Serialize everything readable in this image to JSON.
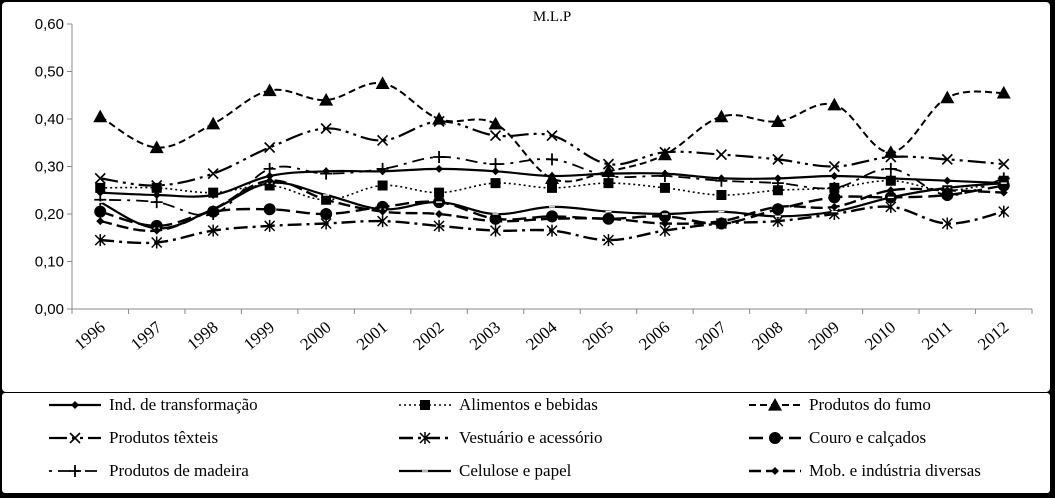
{
  "chart_data": {
    "type": "line",
    "title": "M.L.P",
    "xlabel": "",
    "ylabel": "",
    "ylim": [
      0,
      0.6
    ],
    "yticks": [
      "0,00",
      "0,10",
      "0,20",
      "0,30",
      "0,40",
      "0,50",
      "0,60"
    ],
    "categories": [
      "1996",
      "1997",
      "1998",
      "1999",
      "2000",
      "2001",
      "2002",
      "2003",
      "2004",
      "2005",
      "2006",
      "2007",
      "2008",
      "2009",
      "2010",
      "2011",
      "2012"
    ],
    "grid": false,
    "legend_position": "bottom",
    "series": [
      {
        "name": "Ind. de transformação",
        "values": [
          0.245,
          0.24,
          0.24,
          0.28,
          0.29,
          0.29,
          0.295,
          0.29,
          0.28,
          0.285,
          0.285,
          0.275,
          0.275,
          0.28,
          0.275,
          0.27,
          0.265
        ]
      },
      {
        "name": "Alimentos e bebidas",
        "values": [
          0.255,
          0.255,
          0.245,
          0.26,
          0.23,
          0.26,
          0.245,
          0.265,
          0.255,
          0.265,
          0.255,
          0.24,
          0.25,
          0.255,
          0.27,
          0.25,
          0.27
        ]
      },
      {
        "name": "Produtos do fumo",
        "values": [
          0.405,
          0.34,
          0.39,
          0.46,
          0.44,
          0.475,
          0.4,
          0.39,
          0.275,
          0.29,
          0.325,
          0.405,
          0.395,
          0.43,
          0.33,
          0.445,
          0.455
        ]
      },
      {
        "name": "Produtos têxteis",
        "values": [
          0.275,
          0.26,
          0.285,
          0.34,
          0.38,
          0.355,
          0.395,
          0.365,
          0.365,
          0.305,
          0.33,
          0.325,
          0.315,
          0.3,
          0.32,
          0.315,
          0.305
        ]
      },
      {
        "name": "Vestuário e acessório",
        "values": [
          0.145,
          0.14,
          0.165,
          0.175,
          0.18,
          0.185,
          0.175,
          0.165,
          0.165,
          0.145,
          0.165,
          0.18,
          0.185,
          0.2,
          0.215,
          0.18,
          0.205
        ]
      },
      {
        "name": "Couro e calçados",
        "values": [
          0.205,
          0.175,
          0.205,
          0.21,
          0.2,
          0.215,
          0.225,
          0.19,
          0.195,
          0.19,
          0.195,
          0.18,
          0.21,
          0.235,
          0.235,
          0.24,
          0.26
        ]
      },
      {
        "name": "Produtos de madeira",
        "values": [
          0.23,
          0.225,
          0.2,
          0.295,
          0.285,
          0.295,
          0.32,
          0.305,
          0.315,
          0.28,
          0.28,
          0.27,
          0.265,
          0.255,
          0.295,
          0.24,
          0.275
        ]
      },
      {
        "name": "Celulose e papel",
        "values": [
          0.225,
          0.17,
          0.21,
          0.265,
          0.24,
          0.21,
          0.225,
          0.2,
          0.215,
          0.205,
          0.2,
          0.205,
          0.195,
          0.205,
          0.235,
          0.255,
          0.265
        ]
      },
      {
        "name": "Mob. e indústria diversas",
        "values": [
          0.185,
          0.165,
          0.21,
          0.27,
          0.23,
          0.205,
          0.2,
          0.185,
          0.19,
          0.19,
          0.18,
          0.185,
          0.215,
          0.215,
          0.25,
          0.25,
          0.245
        ]
      }
    ]
  }
}
